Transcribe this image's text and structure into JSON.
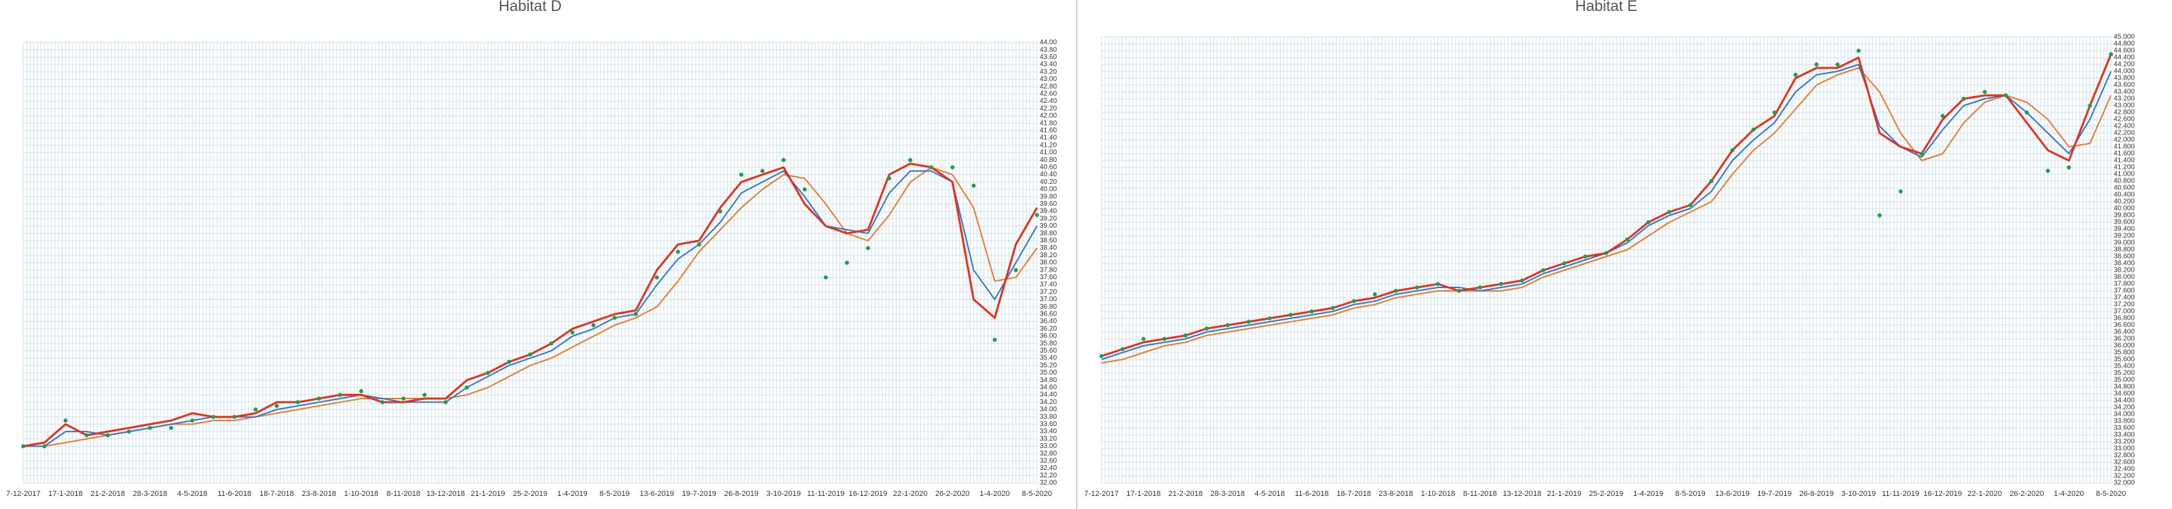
{
  "chart_data": [
    {
      "type": "line",
      "title": "Habitat D",
      "categories": [
        "7-12-2017",
        null,
        "17-1-2018",
        null,
        "21-2-2018",
        null,
        "28-3-2018",
        null,
        "4-5-2018",
        null,
        "11-6-2018",
        null,
        "18-7-2018",
        null,
        "23-8-2018",
        null,
        "1-10-2018",
        null,
        "8-11-2018",
        null,
        "13-12-2018",
        null,
        "21-1-2019",
        null,
        "25-2-2019",
        null,
        "1-4-2019",
        null,
        "8-5-2019",
        null,
        "13-6-2019",
        null,
        "19-7-2019",
        null,
        "26-8-2019",
        null,
        "3-10-2019",
        null,
        "11-11-2019",
        null,
        "16-12-2019",
        null,
        "22-1-2020",
        null,
        "26-2-2020",
        null,
        "1-4-2020",
        null,
        "8-5-2020"
      ],
      "series": [
        {
          "color": "#f07a2a",
          "values": [
            33.0,
            33.0,
            33.1,
            33.2,
            33.3,
            33.4,
            33.5,
            33.6,
            33.6,
            33.7,
            33.7,
            33.8,
            33.9,
            34.0,
            34.1,
            34.2,
            34.3,
            34.3,
            34.3,
            34.3,
            34.3,
            34.4,
            34.6,
            34.9,
            35.2,
            35.4,
            35.7,
            36.0,
            36.3,
            36.5,
            36.8,
            37.5,
            38.3,
            38.9,
            39.5,
            40.0,
            40.4,
            40.3,
            39.6,
            38.8,
            38.6,
            39.3,
            40.2,
            40.6,
            40.4,
            39.5,
            37.5,
            37.6,
            38.4
          ]
        },
        {
          "color": "#2e75d8",
          "values": [
            33.0,
            33.0,
            33.4,
            33.4,
            33.3,
            33.4,
            33.5,
            33.6,
            33.7,
            33.8,
            33.8,
            33.8,
            34.0,
            34.1,
            34.2,
            34.3,
            34.4,
            34.3,
            34.2,
            34.2,
            34.2,
            34.6,
            34.9,
            35.2,
            35.4,
            35.6,
            36.0,
            36.2,
            36.5,
            36.6,
            37.4,
            38.1,
            38.5,
            39.1,
            39.9,
            40.2,
            40.5,
            39.8,
            39.0,
            38.9,
            38.8,
            39.9,
            40.5,
            40.5,
            40.2,
            37.8,
            37.0,
            38.0,
            39.0
          ]
        },
        {
          "color": "#e8311a",
          "values": [
            33.0,
            33.1,
            33.6,
            33.3,
            33.4,
            33.5,
            33.6,
            33.7,
            33.9,
            33.8,
            33.8,
            33.9,
            34.2,
            34.2,
            34.3,
            34.4,
            34.4,
            34.2,
            34.2,
            34.3,
            34.3,
            34.8,
            35.0,
            35.3,
            35.5,
            35.8,
            36.2,
            36.4,
            36.6,
            36.7,
            37.8,
            38.5,
            38.6,
            39.5,
            40.2,
            40.4,
            40.6,
            39.6,
            39.0,
            38.8,
            38.9,
            40.4,
            40.7,
            40.6,
            40.2,
            37.0,
            36.5,
            38.5,
            39.5
          ]
        },
        {
          "color": "#1f9e50",
          "marker": "dots",
          "values": [
            33.0,
            33.0,
            33.7,
            33.3,
            33.3,
            33.4,
            33.5,
            33.5,
            33.7,
            33.8,
            33.8,
            34.0,
            34.1,
            34.2,
            34.3,
            34.4,
            34.5,
            34.2,
            34.3,
            34.4,
            34.2,
            34.6,
            35.0,
            35.3,
            35.5,
            35.8,
            36.1,
            36.3,
            36.5,
            36.6,
            37.6,
            38.3,
            38.5,
            39.4,
            40.4,
            40.5,
            40.8,
            40.0,
            37.6,
            38.0,
            38.4,
            40.3,
            40.8,
            40.6,
            40.6,
            40.1,
            35.9,
            37.8,
            39.3
          ]
        }
      ],
      "ylim": [
        32,
        44
      ],
      "yticks": [
        {
          "value": 32.0,
          "label": "32.00"
        },
        {
          "value": 32.2,
          "label": "32.20"
        },
        {
          "value": 32.4,
          "label": "32.40"
        },
        {
          "value": 32.6,
          "label": "32.60"
        },
        {
          "value": 32.8,
          "label": "32.80"
        },
        {
          "value": 33.0,
          "label": "33.00"
        },
        {
          "value": 33.2,
          "label": "33.20"
        },
        {
          "value": 33.4,
          "label": "33.40"
        },
        {
          "value": 33.6,
          "label": "33.60"
        },
        {
          "value": 33.8,
          "label": "33.80"
        },
        {
          "value": 34.0,
          "label": "34.00"
        },
        {
          "value": 34.2,
          "label": "34.20"
        },
        {
          "value": 34.4,
          "label": "34.40"
        },
        {
          "value": 34.6,
          "label": "34.60"
        },
        {
          "value": 34.8,
          "label": "34.80"
        },
        {
          "value": 35.0,
          "label": "35.00"
        },
        {
          "value": 35.2,
          "label": "35.20"
        },
        {
          "value": 35.4,
          "label": "35.40"
        },
        {
          "value": 35.6,
          "label": "35.60"
        },
        {
          "value": 35.8,
          "label": "35.80"
        },
        {
          "value": 36.0,
          "label": "36.00"
        },
        {
          "value": 36.2,
          "label": "36.20"
        },
        {
          "value": 36.4,
          "label": "36.40"
        },
        {
          "value": 36.6,
          "label": "36.60"
        },
        {
          "value": 36.8,
          "label": "36.80"
        },
        {
          "value": 37.0,
          "label": "37.00"
        },
        {
          "value": 37.2,
          "label": "37.20"
        },
        {
          "value": 37.4,
          "label": "37.40"
        },
        {
          "value": 37.6,
          "label": "37.60"
        },
        {
          "value": 37.8,
          "label": "37.80"
        },
        {
          "value": 38.0,
          "label": "38.00"
        },
        {
          "value": 38.2,
          "label": "38.20"
        },
        {
          "value": 38.4,
          "label": "38.40"
        },
        {
          "value": 38.6,
          "label": "38.60"
        },
        {
          "value": 38.8,
          "label": "38.80"
        },
        {
          "value": 39.0,
          "label": "39.00"
        },
        {
          "value": 39.2,
          "label": "39.20"
        },
        {
          "value": 39.4,
          "label": "39.40"
        },
        {
          "value": 39.6,
          "label": "39.60"
        },
        {
          "value": 39.8,
          "label": "39.80"
        },
        {
          "value": 40.0,
          "label": "40.00"
        },
        {
          "value": 40.2,
          "label": "40.20"
        },
        {
          "value": 40.4,
          "label": "40.40"
        },
        {
          "value": 40.6,
          "label": "40.60"
        },
        {
          "value": 40.8,
          "label": "40.80"
        },
        {
          "value": 41.0,
          "label": "41.00"
        },
        {
          "value": 41.2,
          "label": "41.20"
        },
        {
          "value": 41.4,
          "label": "41.40"
        },
        {
          "value": 41.6,
          "label": "41.60"
        },
        {
          "value": 41.8,
          "label": "41.80"
        },
        {
          "value": 42.0,
          "label": "42.00"
        },
        {
          "value": 42.2,
          "label": "42.20"
        },
        {
          "value": 42.4,
          "label": "42.40"
        },
        {
          "value": 42.6,
          "label": "42.60"
        },
        {
          "value": 42.8,
          "label": "42.80"
        },
        {
          "value": 43.0,
          "label": "43.00"
        },
        {
          "value": 43.2,
          "label": "43.20"
        },
        {
          "value": 43.4,
          "label": "43.40"
        },
        {
          "value": 43.6,
          "label": "43.60"
        },
        {
          "value": 43.8,
          "label": "43.80"
        },
        {
          "value": 44.0,
          "label": "44.00"
        }
      ],
      "grid": true
    },
    {
      "type": "line",
      "title": "Habitat E",
      "categories": [
        "7-12-2017",
        null,
        "17-1-2018",
        null,
        "21-2-2018",
        null,
        "28-3-2018",
        null,
        "4-5-2018",
        null,
        "11-6-2018",
        null,
        "18-7-2018",
        null,
        "23-8-2018",
        null,
        "1-10-2018",
        null,
        "8-11-2018",
        null,
        "13-12-2018",
        null,
        "21-1-2019",
        null,
        "25-2-2019",
        null,
        "1-4-2019",
        null,
        "8-5-2019",
        null,
        "13-6-2019",
        null,
        "19-7-2019",
        null,
        "26-8-2019",
        null,
        "3-10-2019",
        null,
        "11-11-2019",
        null,
        "16-12-2019",
        null,
        "22-1-2020",
        null,
        "26-2-2020",
        null,
        "1-4-2020",
        null,
        "8-5-2020"
      ],
      "series": [
        {
          "color": "#f07a2a",
          "values": [
            35.5,
            35.6,
            35.8,
            36.0,
            36.1,
            36.3,
            36.4,
            36.5,
            36.6,
            36.7,
            36.8,
            36.9,
            37.1,
            37.2,
            37.4,
            37.5,
            37.6,
            37.6,
            37.6,
            37.6,
            37.7,
            38.0,
            38.2,
            38.4,
            38.6,
            38.8,
            39.2,
            39.6,
            39.9,
            40.2,
            41.0,
            41.7,
            42.2,
            42.9,
            43.6,
            43.9,
            44.1,
            43.4,
            42.2,
            41.4,
            41.6,
            42.5,
            43.1,
            43.3,
            43.1,
            42.6,
            41.8,
            41.9,
            43.3
          ]
        },
        {
          "color": "#2e75d8",
          "values": [
            35.6,
            35.8,
            36.0,
            36.1,
            36.2,
            36.4,
            36.5,
            36.6,
            36.7,
            36.8,
            36.9,
            37.0,
            37.2,
            37.3,
            37.5,
            37.6,
            37.7,
            37.7,
            37.6,
            37.7,
            37.8,
            38.1,
            38.3,
            38.5,
            38.7,
            39.0,
            39.5,
            39.8,
            40.0,
            40.5,
            41.4,
            42.0,
            42.5,
            43.4,
            43.9,
            44.0,
            44.2,
            42.4,
            41.8,
            41.5,
            42.3,
            43.0,
            43.2,
            43.3,
            42.8,
            42.2,
            41.6,
            42.6,
            44.0
          ]
        },
        {
          "color": "#e8311a",
          "values": [
            35.7,
            35.9,
            36.1,
            36.2,
            36.3,
            36.5,
            36.6,
            36.7,
            36.8,
            36.9,
            37.0,
            37.1,
            37.3,
            37.4,
            37.6,
            37.7,
            37.8,
            37.6,
            37.7,
            37.8,
            37.9,
            38.2,
            38.4,
            38.6,
            38.7,
            39.1,
            39.6,
            39.9,
            40.1,
            40.8,
            41.7,
            42.3,
            42.7,
            43.8,
            44.1,
            44.1,
            44.4,
            42.2,
            41.8,
            41.6,
            42.6,
            43.2,
            43.3,
            43.3,
            42.5,
            41.7,
            41.4,
            43.0,
            44.5
          ]
        },
        {
          "color": "#1f9e50",
          "marker": "dots",
          "values": [
            35.7,
            35.9,
            36.2,
            36.2,
            36.3,
            36.5,
            36.6,
            36.7,
            36.8,
            36.9,
            37.0,
            37.1,
            37.3,
            37.5,
            37.6,
            37.7,
            37.8,
            37.6,
            37.7,
            37.8,
            37.9,
            38.2,
            38.4,
            38.6,
            38.7,
            39.1,
            39.6,
            39.9,
            40.1,
            40.8,
            41.7,
            42.3,
            42.8,
            43.9,
            44.2,
            44.2,
            44.6,
            39.8,
            40.5,
            41.6,
            42.7,
            43.2,
            43.4,
            43.3,
            42.8,
            41.1,
            41.2,
            43.0,
            44.5
          ]
        }
      ],
      "ylim": [
        32,
        45
      ],
      "yticks": [
        {
          "value": 32.0,
          "label": "32.000"
        },
        {
          "value": 32.2,
          "label": "32.200"
        },
        {
          "value": 32.4,
          "label": "32.400"
        },
        {
          "value": 32.6,
          "label": "32.600"
        },
        {
          "value": 32.8,
          "label": "32.800"
        },
        {
          "value": 33.0,
          "label": "33.000"
        },
        {
          "value": 33.2,
          "label": "33.200"
        },
        {
          "value": 33.4,
          "label": "33.400"
        },
        {
          "value": 33.6,
          "label": "33.600"
        },
        {
          "value": 33.8,
          "label": "33.800"
        },
        {
          "value": 34.0,
          "label": "34.000"
        },
        {
          "value": 34.2,
          "label": "34.200"
        },
        {
          "value": 34.4,
          "label": "34.400"
        },
        {
          "value": 34.6,
          "label": "34.600"
        },
        {
          "value": 34.8,
          "label": "34.800"
        },
        {
          "value": 35.0,
          "label": "35.000"
        },
        {
          "value": 35.2,
          "label": "35.200"
        },
        {
          "value": 35.4,
          "label": "35.400"
        },
        {
          "value": 35.6,
          "label": "35.600"
        },
        {
          "value": 35.8,
          "label": "35.800"
        },
        {
          "value": 36.0,
          "label": "36.000"
        },
        {
          "value": 36.2,
          "label": "36.200"
        },
        {
          "value": 36.4,
          "label": "36.400"
        },
        {
          "value": 36.6,
          "label": "36.600"
        },
        {
          "value": 36.8,
          "label": "36.800"
        },
        {
          "value": 37.0,
          "label": "37.000"
        },
        {
          "value": 37.2,
          "label": "37.200"
        },
        {
          "value": 37.4,
          "label": "37.400"
        },
        {
          "value": 37.6,
          "label": "37.600"
        },
        {
          "value": 37.8,
          "label": "37.800"
        },
        {
          "value": 38.0,
          "label": "38.000"
        },
        {
          "value": 38.2,
          "label": "38.200"
        },
        {
          "value": 38.4,
          "label": "38.400"
        },
        {
          "value": 38.6,
          "label": "38.600"
        },
        {
          "value": 38.8,
          "label": "38.800"
        },
        {
          "value": 39.0,
          "label": "39.000"
        },
        {
          "value": 39.2,
          "label": "39.200"
        },
        {
          "value": 39.4,
          "label": "39.400"
        },
        {
          "value": 39.6,
          "label": "39.600"
        },
        {
          "value": 39.8,
          "label": "39.800"
        },
        {
          "value": 40.0,
          "label": "40.000"
        },
        {
          "value": 40.2,
          "label": "40.200"
        },
        {
          "value": 40.4,
          "label": "40.400"
        },
        {
          "value": 40.6,
          "label": "40.600"
        },
        {
          "value": 40.8,
          "label": "40.800"
        },
        {
          "value": 41.0,
          "label": "41.000"
        },
        {
          "value": 41.2,
          "label": "41.200"
        },
        {
          "value": 41.4,
          "label": "41.400"
        },
        {
          "value": 41.6,
          "label": "41.600"
        },
        {
          "value": 41.8,
          "label": "41.800"
        },
        {
          "value": 42.0,
          "label": "42.000"
        },
        {
          "value": 42.2,
          "label": "42.200"
        },
        {
          "value": 42.4,
          "label": "42.400"
        },
        {
          "value": 42.6,
          "label": "42.600"
        },
        {
          "value": 42.8,
          "label": "42.800"
        },
        {
          "value": 43.0,
          "label": "43.000"
        },
        {
          "value": 43.2,
          "label": "43.200"
        },
        {
          "value": 43.4,
          "label": "43.400"
        },
        {
          "value": 43.6,
          "label": "43.600"
        },
        {
          "value": 43.8,
          "label": "43.800"
        },
        {
          "value": 44.0,
          "label": "44.000"
        },
        {
          "value": 44.2,
          "label": "44.200"
        },
        {
          "value": 44.4,
          "label": "44.400"
        },
        {
          "value": 44.6,
          "label": "44.600"
        },
        {
          "value": 44.8,
          "label": "44.800"
        },
        {
          "value": 45.0,
          "label": "45.000"
        }
      ],
      "grid": true
    }
  ]
}
